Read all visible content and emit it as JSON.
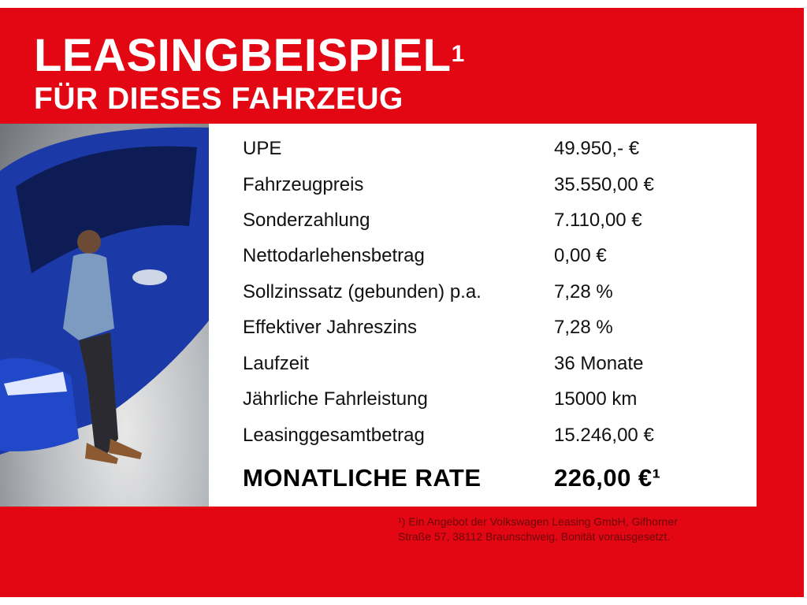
{
  "header": {
    "title": "LEASINGBEISPIEL",
    "title_sup": "1",
    "subtitle": "FÜR DIESES FAHRZEUG"
  },
  "colors": {
    "brand_red": "#e30613",
    "car_blue": "#1a3fb8"
  },
  "table": {
    "rows": [
      {
        "label": "UPE",
        "value": "49.950,- €"
      },
      {
        "label": "Fahrzeugpreis",
        "value": "35.550,00 €"
      },
      {
        "label": "Sonderzahlung",
        "value": "7.110,00 €"
      },
      {
        "label": "Nettodarlehensbetrag",
        "value": "0,00 €"
      },
      {
        "label": "Sollzinssatz (gebunden) p.a.",
        "value": "7,28 %"
      },
      {
        "label": "Effektiver Jahreszins",
        "value": "7,28 %"
      },
      {
        "label": "Laufzeit",
        "value": "36 Monate"
      },
      {
        "label": "Jährliche Fahrleistung",
        "value": "15000 km"
      },
      {
        "label": "Leasinggesamtbetrag",
        "value": "15.246,00 €"
      }
    ],
    "rate_label": "MONATLICHE RATE",
    "rate_value": "226,00 €¹"
  },
  "footnote": {
    "line1": "¹) Ein Angebot der Volkswagen Leasing GmbH, Gifhorner",
    "line2": "Straße 57, 38112 Braunschweig. Bonität vorausgesetzt."
  }
}
